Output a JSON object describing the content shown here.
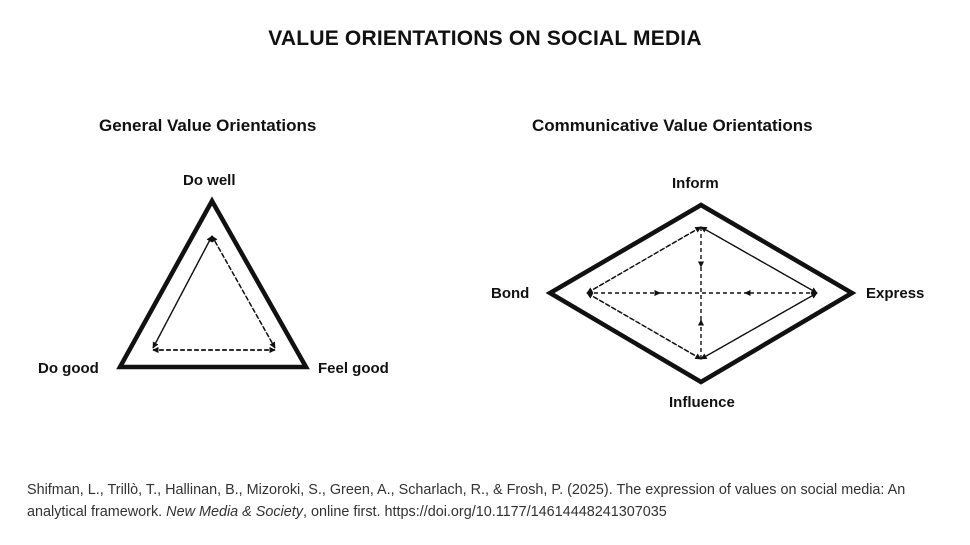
{
  "title": "VALUE ORIENTATIONS ON SOCIAL MEDIA",
  "left_diagram": {
    "subtitle": "General Value Orientations",
    "shape": "triangle",
    "vertices": {
      "top": "Do well",
      "bottom_left": "Do good",
      "bottom_right": "Feel good"
    }
  },
  "right_diagram": {
    "subtitle": "Communicative Value Orientations",
    "shape": "diamond",
    "vertices": {
      "top": "Inform",
      "left": "Bond",
      "right": "Express",
      "bottom": "Influence"
    }
  },
  "citation": {
    "authors_and_title": "Shifman, L., Trillò, T., Hallinan, B., Mizoroki, S., Green, A., Scharlach, R., & Frosh, P. (2025). The expression of values on social media: An analytical framework.",
    "journal": "New Media & Society",
    "tail": ", online first. https://doi.org/10.1177/14614448241307035"
  },
  "colors": {
    "ink": "#111111",
    "citation_text": "#333333",
    "background": "#ffffff"
  }
}
